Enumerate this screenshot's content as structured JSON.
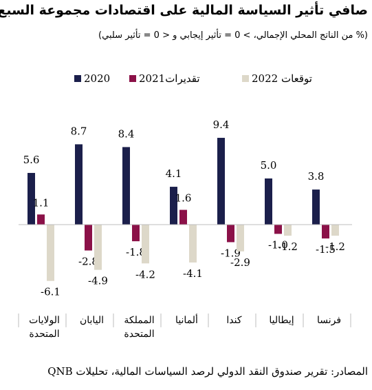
{
  "title": "صافي تأثير السياسة المالية على اقتصادات مجموعة السبع",
  "subtitle": "(% من الناتج المحلي الإجمالي، > 0 = تأثير إيجابي و < 0 = تأثير سلبي)",
  "source": "المصادر: تقرير صندوق النقد الدولي لرصد السياسات المالية، تحليلات QNB",
  "colors": {
    "s2020": "#1b1f4b",
    "s2021": "#8b1148",
    "s2022": "#ddd8c9",
    "axis": "#bdbdbd"
  },
  "chart_data": {
    "type": "bar",
    "categories": [
      "الولايات المتحدة",
      "اليابان",
      "المملكة المتحدة",
      "ألمانيا",
      "كندا",
      "إيطاليا",
      "فرنسا"
    ],
    "series": [
      {
        "name": "2020",
        "values": [
          5.6,
          8.7,
          8.4,
          4.1,
          9.4,
          5.0,
          3.8
        ]
      },
      {
        "name": "تقديرات2021",
        "values": [
          1.1,
          -2.8,
          -1.8,
          1.6,
          -1.9,
          -1.0,
          -1.5
        ]
      },
      {
        "name": "توقعات 2022",
        "values": [
          -6.1,
          -4.9,
          -4.2,
          -4.1,
          -2.9,
          -1.2,
          -1.2
        ]
      }
    ],
    "data_labels": [
      [
        "5.6",
        "8.7",
        "8.4",
        "4.1",
        "9.4",
        "5.0",
        "3.8"
      ],
      [
        "1.1",
        "-2.8",
        "-1.8",
        "1.6",
        "-1.9",
        "-1.0",
        "-1.5"
      ],
      [
        "-6.1",
        "-4.9",
        "-4.2",
        "-4.1",
        "-2.9",
        "-1.2",
        "-1.2"
      ]
    ],
    "ylim": [
      -6.1,
      9.4
    ],
    "grid": false,
    "legend": "top"
  }
}
